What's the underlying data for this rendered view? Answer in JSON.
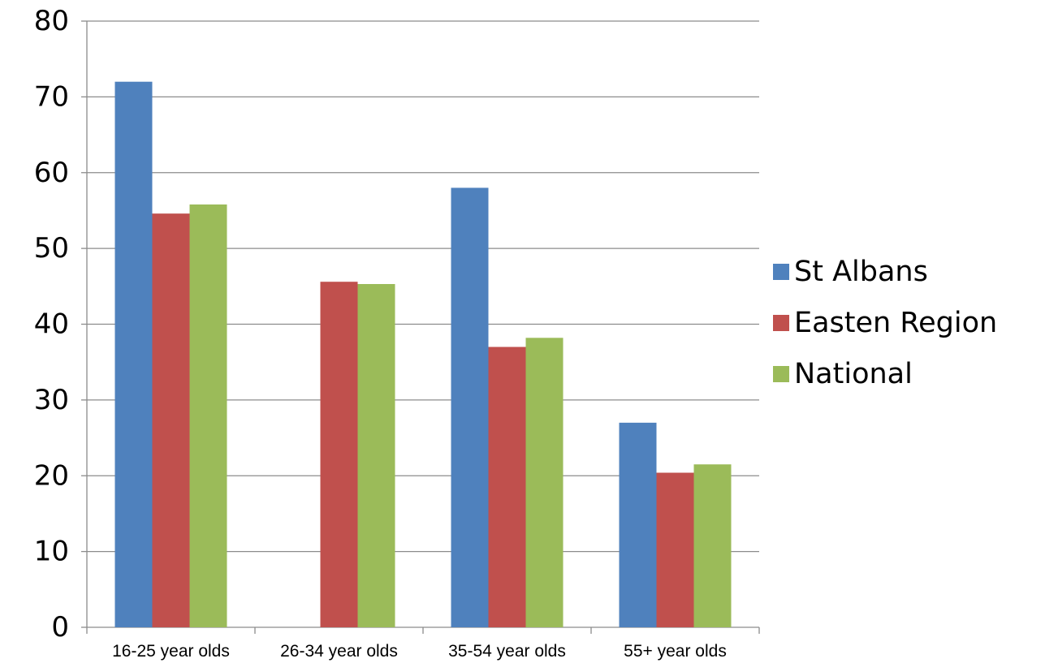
{
  "chart_data": {
    "type": "bar",
    "title": "",
    "xlabel": "",
    "ylabel": "",
    "categories": [
      "16-25 year olds",
      "26-34 year olds",
      "35-54 year olds",
      "55+ year olds"
    ],
    "series": [
      {
        "name": "St Albans",
        "color": "#4F81BD",
        "values": [
          72,
          0,
          58,
          27
        ]
      },
      {
        "name": "Easten Region",
        "color": "#C0504D",
        "values": [
          54.6,
          45.6,
          37,
          20.4
        ]
      },
      {
        "name": "National",
        "color": "#9BBB59",
        "values": [
          55.8,
          45.3,
          38.2,
          21.5
        ]
      }
    ],
    "ylim": [
      0,
      80
    ],
    "yticks": [
      0,
      10,
      20,
      30,
      40,
      50,
      60,
      70,
      80
    ],
    "grid": true,
    "legend_position": "right"
  }
}
